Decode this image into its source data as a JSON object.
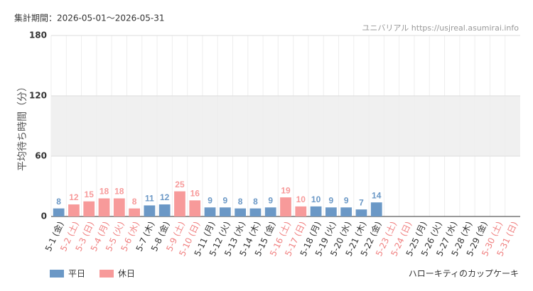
{
  "chart_data": {
    "type": "bar",
    "title": "集計期間：2026-05-01～2026-05-31",
    "source": "ユニバリアル https://usjreal.asumirai.info",
    "subtitle": "ハローキティのカップケーキ",
    "y_label": "平均待ち時間（分）",
    "categories": [
      "5-1 (金)",
      "5-2 (土)",
      "5-3 (日)",
      "5-4 (月)",
      "5-5 (火)",
      "5-6 (水)",
      "5-7 (木)",
      "5-8 (金)",
      "5-9 (土)",
      "5-10 (日)",
      "5-11 (月)",
      "5-12 (火)",
      "5-13 (水)",
      "5-14 (木)",
      "5-15 (金)",
      "5-16 (土)",
      "5-17 (日)",
      "5-18 (月)",
      "5-19 (火)",
      "5-20 (水)",
      "5-21 (木)",
      "5-22 (金)",
      "5-23 (土)",
      "5-24 (日)",
      "5-25 (月)",
      "5-26 (火)",
      "5-27 (水)",
      "5-28 (木)",
      "5-29 (金)",
      "5-30 (土)",
      "5-31 (日)"
    ],
    "category_colors": [
      "#333",
      "#f08080",
      "#f08080",
      "#f08080",
      "#f08080",
      "#f08080",
      "#333",
      "#333",
      "#f08080",
      "#f08080",
      "#333",
      "#333",
      "#333",
      "#333",
      "#333",
      "#f08080",
      "#f08080",
      "#333",
      "#333",
      "#333",
      "#333",
      "#333",
      "#f08080",
      "#f08080",
      "#333",
      "#333",
      "#333",
      "#333",
      "#333",
      "#f08080",
      "#f08080"
    ],
    "series": [
      {
        "name": "平日",
        "color": "#6b98c6",
        "values": [
          8,
          null,
          null,
          null,
          null,
          null,
          11,
          12,
          null,
          null,
          9,
          9,
          8,
          8,
          9,
          null,
          null,
          10,
          9,
          9,
          7,
          14,
          null,
          null,
          null,
          null,
          null,
          null,
          null,
          null,
          null
        ]
      },
      {
        "name": "休日",
        "color": "#f79a9a",
        "values": [
          null,
          12,
          15,
          18,
          18,
          8,
          null,
          null,
          25,
          16,
          null,
          null,
          null,
          null,
          null,
          19,
          10,
          null,
          null,
          null,
          null,
          null,
          null,
          null,
          null,
          null,
          null,
          null,
          null,
          null,
          null
        ]
      }
    ],
    "ylim": [
      0,
      180
    ],
    "yticks": [
      0,
      60,
      120,
      180
    ],
    "grid": true
  }
}
